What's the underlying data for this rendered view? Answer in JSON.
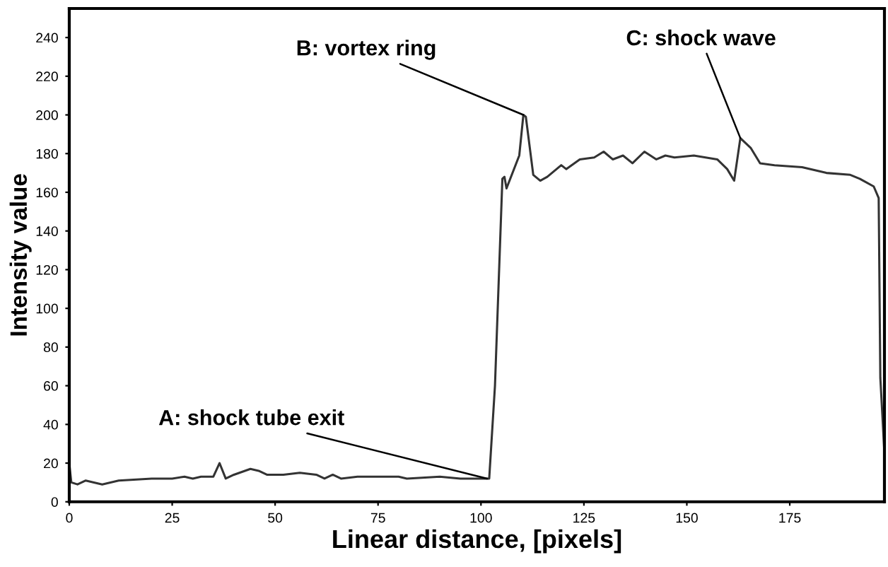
{
  "chart_data": {
    "type": "line",
    "xlabel": "Linear distance, [pixels]",
    "ylabel": "Intensity value",
    "x": [
      0,
      0.5,
      2,
      4,
      6,
      8,
      12,
      20,
      25,
      28,
      30,
      32,
      35,
      36.5,
      38,
      40,
      44,
      46,
      48,
      52,
      56,
      60,
      62,
      64,
      66,
      70,
      80,
      82,
      90,
      95,
      100,
      102,
      103.4,
      105.2,
      105.7,
      106.2,
      109.3,
      110.3,
      110.9,
      112.7,
      114.4,
      116.1,
      119.5,
      120.7,
      124,
      127.5,
      129.8,
      132,
      134.5,
      136.8,
      139.7,
      142.6,
      144.8,
      147,
      151.7,
      157.4,
      159.8,
      161.5,
      163,
      165.5,
      167.8,
      171.3,
      178,
      183.9,
      189.7,
      192,
      195.4,
      196.6,
      197,
      198
    ],
    "series": [
      {
        "color": "#333333",
        "values": [
          20,
          10,
          9,
          11,
          10,
          9,
          11,
          12,
          12,
          13,
          12,
          13,
          13,
          20,
          12,
          14,
          17,
          16,
          14,
          14,
          15,
          14,
          12,
          14,
          12,
          13,
          13,
          12,
          13,
          12,
          12,
          12,
          60,
          167,
          168,
          162,
          179,
          200,
          199,
          169,
          166,
          168,
          174,
          172,
          177,
          178,
          181,
          177,
          179,
          175,
          181,
          177,
          179,
          178,
          179,
          177,
          172,
          166,
          188,
          183,
          175,
          174,
          173,
          170,
          169,
          167,
          163,
          157,
          64,
          25
        ]
      }
    ],
    "xlim": [
      0,
      198
    ],
    "ylim": [
      0,
      255
    ],
    "xticks": [
      0,
      25,
      50,
      75,
      100,
      125,
      150,
      175
    ],
    "yticks": [
      0,
      20,
      40,
      60,
      80,
      100,
      120,
      140,
      160,
      180,
      200,
      220,
      240
    ],
    "grid": false,
    "marker": "none",
    "line_style": "solid",
    "annotations": [
      {
        "text": "A: shock tube exit",
        "x": 101.5,
        "y": 12
      },
      {
        "text": "B: vortex ring",
        "x": 110.3,
        "y": 200
      },
      {
        "text": "C: shock wave",
        "x": 163,
        "y": 188
      }
    ]
  }
}
